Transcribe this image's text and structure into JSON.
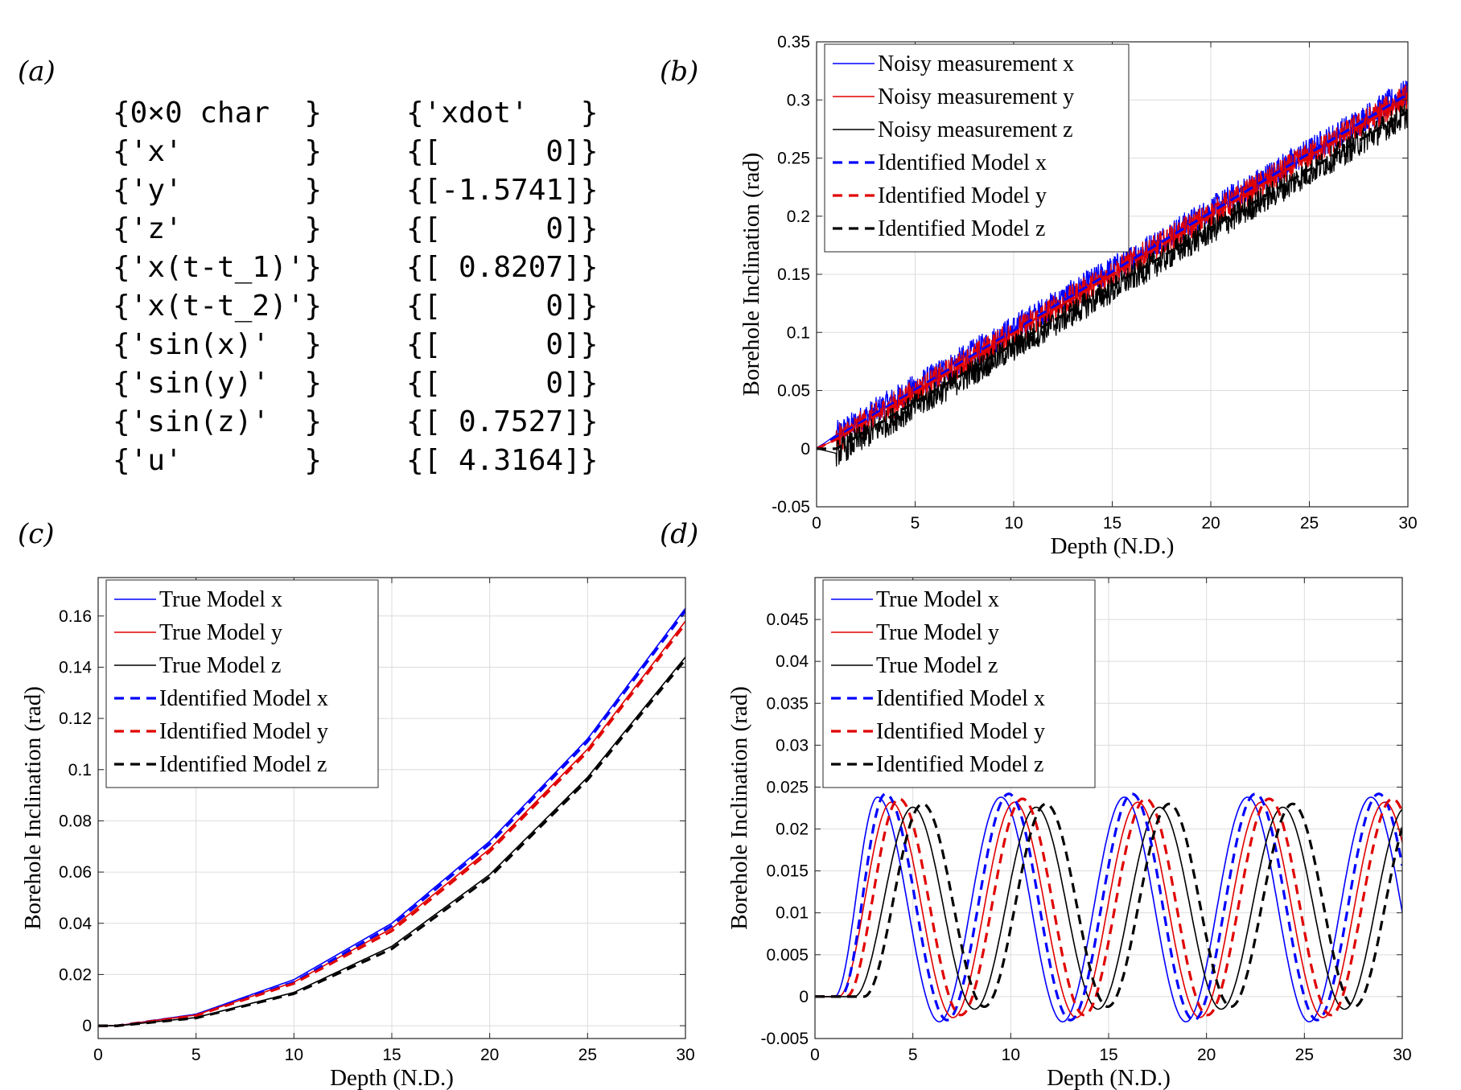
{
  "panel_labels": [
    "(a)",
    "(b)",
    "(c)",
    "(d)"
  ],
  "code_table": {
    "rows": [
      [
        "{0×0 char  }",
        "{'xdot'   }"
      ],
      [
        "{'x'       }",
        "{[      0]}"
      ],
      [
        "{'y'       }",
        "{[-1.5741]}"
      ],
      [
        "{'z'       }",
        "{[      0]}"
      ],
      [
        "{'x(t-t_1)'}",
        "{[ 0.8207]}"
      ],
      [
        "{'x(t-t_2)'}",
        "{[      0]}"
      ],
      [
        "{'sin(x)'  }",
        "{[      0]}"
      ],
      [
        "{'sin(y)'  }",
        "{[      0]}"
      ],
      [
        "{'sin(z)'  }",
        "{[ 0.7527]}"
      ],
      [
        "{'u'       }",
        "{[ 4.3164]}"
      ]
    ]
  },
  "colors": {
    "x": "#0000ff",
    "y": "#e00000",
    "z": "#000000",
    "grid": "#dcdcdc"
  },
  "chart_data": [
    {
      "id": "b",
      "type": "line",
      "xlabel": "Depth (N.D.)",
      "ylabel": "Borehole Inclination (rad)",
      "xlim": [
        0,
        30
      ],
      "ylim": [
        -0.05,
        0.35
      ],
      "xticks": [
        0,
        5,
        10,
        15,
        20,
        25,
        30
      ],
      "yticks": [
        -0.05,
        0,
        0.05,
        0.1,
        0.15,
        0.2,
        0.25,
        0.3,
        0.35
      ],
      "ytick_labels": [
        "-0.05",
        "0",
        "0.05",
        "0.1",
        "0.15",
        "0.2",
        "0.25",
        "0.3",
        "0.35"
      ],
      "grid": true,
      "legend_position": "top-left",
      "series": [
        {
          "name": "Noisy measurement x",
          "color": "#0000ff",
          "style": "solid",
          "noisy": true,
          "x": [
            0,
            1,
            30
          ],
          "y": [
            0,
            0.012,
            0.307
          ]
        },
        {
          "name": "Noisy measurement y",
          "color": "#e00000",
          "style": "solid",
          "noisy": true,
          "x": [
            0,
            1,
            30
          ],
          "y": [
            0,
            0.008,
            0.303
          ]
        },
        {
          "name": "Noisy measurement z",
          "color": "#000000",
          "style": "solid",
          "noisy": true,
          "x": [
            0,
            1,
            30
          ],
          "y": [
            0,
            -0.004,
            0.288
          ]
        },
        {
          "name": "Identified Model x",
          "color": "#0000ff",
          "style": "dashed",
          "x": [
            0,
            1,
            30
          ],
          "y": [
            0,
            0.01,
            0.305
          ]
        },
        {
          "name": "Identified Model y",
          "color": "#e00000",
          "style": "dashed",
          "x": [
            0,
            1,
            30
          ],
          "y": [
            0,
            0.008,
            0.302
          ]
        },
        {
          "name": "Identified Model z",
          "color": "#000000",
          "style": "dashed",
          "x": [
            0,
            1,
            30
          ],
          "y": [
            0,
            0.0,
            0.29
          ]
        }
      ]
    },
    {
      "id": "c",
      "type": "line",
      "xlabel": "Depth (N.D.)",
      "ylabel": "Borehole Inclination (rad)",
      "xlim": [
        0,
        30
      ],
      "ylim": [
        -0.005,
        0.175
      ],
      "xticks": [
        0,
        5,
        10,
        15,
        20,
        25,
        30
      ],
      "yticks": [
        0,
        0.02,
        0.04,
        0.06,
        0.08,
        0.1,
        0.12,
        0.14,
        0.16
      ],
      "ytick_labels": [
        "0",
        "0.02",
        "0.04",
        "0.06",
        "0.08",
        "0.1",
        "0.12",
        "0.14",
        "0.16"
      ],
      "grid": true,
      "legend_position": "top-left",
      "series": [
        {
          "name": "True Model x",
          "color": "#0000ff",
          "style": "solid",
          "x": [
            0,
            1,
            5,
            10,
            15,
            20,
            25,
            30
          ],
          "y": [
            0,
            0,
            0.0045,
            0.018,
            0.04,
            0.072,
            0.112,
            0.163
          ]
        },
        {
          "name": "True Model y",
          "color": "#e00000",
          "style": "solid",
          "x": [
            0,
            1,
            5,
            10,
            15,
            20,
            25,
            30
          ],
          "y": [
            0,
            0,
            0.0042,
            0.017,
            0.038,
            0.069,
            0.108,
            0.158
          ]
        },
        {
          "name": "True Model z",
          "color": "#000000",
          "style": "solid",
          "x": [
            0,
            1,
            5,
            10,
            15,
            20,
            25,
            30
          ],
          "y": [
            0,
            0,
            0.0032,
            0.013,
            0.031,
            0.059,
            0.097,
            0.144
          ]
        },
        {
          "name": "Identified Model x",
          "color": "#0000ff",
          "style": "dashed",
          "x": [
            0,
            1,
            5,
            10,
            15,
            20,
            25,
            30
          ],
          "y": [
            0,
            0,
            0.0042,
            0.017,
            0.039,
            0.071,
            0.111,
            0.162
          ]
        },
        {
          "name": "Identified Model y",
          "color": "#e00000",
          "style": "dashed",
          "x": [
            0,
            1,
            5,
            10,
            15,
            20,
            25,
            30
          ],
          "y": [
            0,
            0,
            0.004,
            0.0165,
            0.037,
            0.068,
            0.107,
            0.157
          ]
        },
        {
          "name": "Identified Model z",
          "color": "#000000",
          "style": "dashed",
          "x": [
            0,
            1,
            5,
            10,
            15,
            20,
            25,
            30
          ],
          "y": [
            0,
            0,
            0.003,
            0.0125,
            0.03,
            0.058,
            0.096,
            0.143
          ]
        }
      ]
    },
    {
      "id": "d",
      "type": "line",
      "xlabel": "Depth (N.D.)",
      "ylabel": "Borehole Inclination (rad)",
      "xlim": [
        0,
        30
      ],
      "ylim": [
        -0.005,
        0.05
      ],
      "xticks": [
        0,
        5,
        10,
        15,
        20,
        25,
        30
      ],
      "yticks": [
        -0.005,
        0,
        0.005,
        0.01,
        0.015,
        0.02,
        0.025,
        0.03,
        0.035,
        0.04,
        0.045
      ],
      "ytick_labels": [
        "-0.005",
        "0",
        "0.005",
        "0.01",
        "0.015",
        "0.02",
        "0.025",
        "0.03",
        "0.035",
        "0.04",
        "0.045"
      ],
      "grid": true,
      "legend_position": "top-left",
      "series": [
        {
          "name": "True Model x",
          "color": "#0000ff",
          "style": "solid",
          "periodic": {
            "start": 1.0,
            "first_peak": 3.2,
            "period": 6.3,
            "max": 0.0238,
            "min": -0.003
          }
        },
        {
          "name": "True Model y",
          "color": "#e00000",
          "style": "solid",
          "periodic": {
            "start": 1.2,
            "first_peak": 3.9,
            "period": 6.3,
            "max": 0.0232,
            "min": -0.0025
          }
        },
        {
          "name": "True Model z",
          "color": "#000000",
          "style": "solid",
          "periodic": {
            "start": 2.0,
            "first_peak": 5.0,
            "period": 6.3,
            "max": 0.0226,
            "min": -0.0015
          }
        },
        {
          "name": "Identified Model x",
          "color": "#0000ff",
          "style": "dashed",
          "periodic": {
            "start": 1.3,
            "first_peak": 3.6,
            "period": 6.3,
            "max": 0.0242,
            "min": -0.0028
          }
        },
        {
          "name": "Identified Model y",
          "color": "#e00000",
          "style": "dashed",
          "periodic": {
            "start": 1.6,
            "first_peak": 4.3,
            "period": 6.3,
            "max": 0.0236,
            "min": -0.0022
          }
        },
        {
          "name": "Identified Model z",
          "color": "#000000",
          "style": "dashed",
          "periodic": {
            "start": 2.5,
            "first_peak": 5.5,
            "period": 6.3,
            "max": 0.023,
            "min": -0.0012
          }
        }
      ]
    }
  ]
}
